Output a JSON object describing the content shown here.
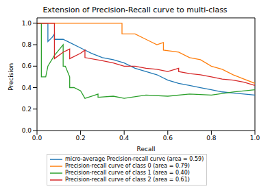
{
  "chart_data": {
    "type": "line",
    "title": "Extension of Precision-Recall curve to multi-class",
    "x_label": "Recall",
    "y_label": "Precision",
    "xlim": [
      0,
      1
    ],
    "ylim": [
      0,
      1.05
    ],
    "xticks": [
      {
        "value": 0,
        "label": "0.0"
      },
      {
        "value": 0.2,
        "label": "0.2"
      },
      {
        "value": 0.4,
        "label": "0.4"
      },
      {
        "value": 0.6,
        "label": "0.6"
      },
      {
        "value": 0.8,
        "label": "0.8"
      },
      {
        "value": 1,
        "label": "1.0"
      }
    ],
    "yticks": [
      {
        "value": 0,
        "label": "0.0"
      },
      {
        "value": 0.2,
        "label": "0.2"
      },
      {
        "value": 0.4,
        "label": "0.4"
      },
      {
        "value": 0.6,
        "label": "0.6"
      },
      {
        "value": 0.8,
        "label": "0.8"
      },
      {
        "value": 1,
        "label": "1.0"
      }
    ],
    "grid": false,
    "legend": "bottom",
    "line_style": "solid",
    "marker": "none",
    "series": [
      {
        "name": "micro-average Precision-recall curve (area = 0.59)",
        "color": "#1f77b4",
        "x": [
          0,
          0.05,
          0.05,
          0.07,
          0.08,
          0.08,
          0.12,
          0.15,
          0.2,
          0.25,
          0.3,
          0.35,
          0.4,
          0.45,
          0.5,
          0.55,
          0.6,
          0.65,
          0.7,
          0.75,
          0.8,
          0.85,
          0.9,
          0.95,
          1
        ],
        "values": [
          1,
          1,
          0.83,
          0.87,
          0.9,
          0.85,
          0.85,
          0.82,
          0.77,
          0.72,
          0.68,
          0.66,
          0.63,
          0.58,
          0.55,
          0.52,
          0.47,
          0.44,
          0.42,
          0.4,
          0.38,
          0.36,
          0.35,
          0.34,
          0.33
        ]
      },
      {
        "name": "Precision-recall curve of class 0 (area = 0.79)",
        "color": "#ff7f0e",
        "x": [
          0,
          0.39,
          0.39,
          0.45,
          0.5,
          0.55,
          0.58,
          0.58,
          0.65,
          0.7,
          0.75,
          0.8,
          0.85,
          0.9,
          0.95,
          1
        ],
        "values": [
          1,
          1,
          0.9,
          0.9,
          0.85,
          0.8,
          0.82,
          0.75,
          0.73,
          0.68,
          0.66,
          0.6,
          0.57,
          0.52,
          0.48,
          0.44
        ]
      },
      {
        "name": "Precision-recall curve of class 1 (area = 0.40)",
        "color": "#2ca02c",
        "x": [
          0,
          0.02,
          0.02,
          0.04,
          0.05,
          0.08,
          0.1,
          0.12,
          0.12,
          0.13,
          0.15,
          0.15,
          0.17,
          0.2,
          0.22,
          0.25,
          0.28,
          0.28,
          0.35,
          0.4,
          0.5,
          0.6,
          0.7,
          0.8,
          0.9,
          1
        ],
        "values": [
          1,
          1,
          0.5,
          0.5,
          0.6,
          0.7,
          0.75,
          0.8,
          0.6,
          0.6,
          0.5,
          0.4,
          0.4,
          0.37,
          0.3,
          0.32,
          0.34,
          0.31,
          0.32,
          0.3,
          0.33,
          0.32,
          0.34,
          0.33,
          0.36,
          0.38
        ]
      },
      {
        "name": "Precision-recall curve of class 2 (area = 0.61)",
        "color": "#d62728",
        "x": [
          0,
          0.08,
          0.08,
          0.12,
          0.15,
          0.15,
          0.2,
          0.22,
          0.22,
          0.3,
          0.35,
          0.4,
          0.45,
          0.5,
          0.55,
          0.6,
          0.65,
          0.65,
          0.7,
          0.75,
          0.8,
          0.85,
          0.9,
          0.95,
          1
        ],
        "values": [
          1,
          1,
          0.67,
          0.73,
          0.76,
          0.67,
          0.72,
          0.75,
          0.68,
          0.65,
          0.63,
          0.6,
          0.6,
          0.58,
          0.57,
          0.55,
          0.58,
          0.55,
          0.53,
          0.52,
          0.5,
          0.48,
          0.47,
          0.45,
          0.42
        ]
      }
    ]
  }
}
